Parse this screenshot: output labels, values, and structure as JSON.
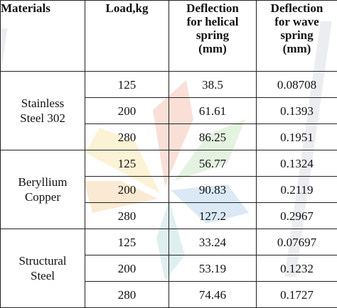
{
  "table": {
    "headers": [
      "Materials",
      "Load,kg",
      "Deflection for helical spring (mm)",
      "Deflection for wave spring (mm)"
    ],
    "header_lines": {
      "materials": [
        "Materials"
      ],
      "load": [
        "Load,kg"
      ],
      "helical": [
        "Deflection",
        "for helical",
        "spring",
        "(mm)"
      ],
      "wave": [
        "Deflection",
        "for wave",
        "spring",
        "(mm)"
      ]
    },
    "groups": [
      {
        "material_lines": [
          "Stainless",
          "Steel 302"
        ],
        "rows": [
          {
            "load": "125",
            "helical": "38.5",
            "wave": "0.08708"
          },
          {
            "load": "200",
            "helical": "61.61",
            "wave": "0.1393"
          },
          {
            "load": "280",
            "helical": "86.25",
            "wave": "0.1951"
          }
        ]
      },
      {
        "material_lines": [
          "Beryllium",
          "Copper"
        ],
        "rows": [
          {
            "load": "125",
            "helical": "56.77",
            "wave": "0.1324"
          },
          {
            "load": "200",
            "helical": "90.83",
            "wave": "0.2119"
          },
          {
            "load": "280",
            "helical": "127.2",
            "wave": "0.2967"
          }
        ]
      },
      {
        "material_lines": [
          "Structural",
          "Steel"
        ],
        "rows": [
          {
            "load": "125",
            "helical": "33.24",
            "wave": "0.07697"
          },
          {
            "load": "200",
            "helical": "53.19",
            "wave": "0.1232"
          },
          {
            "load": "280",
            "helical": "74.46",
            "wave": "0.1727"
          }
        ]
      }
    ]
  },
  "watermark": {
    "colors": [
      "#f6c6b8",
      "#c9e7c8",
      "#bfd8ef",
      "#fbe9b4",
      "#d9dde4"
    ]
  }
}
